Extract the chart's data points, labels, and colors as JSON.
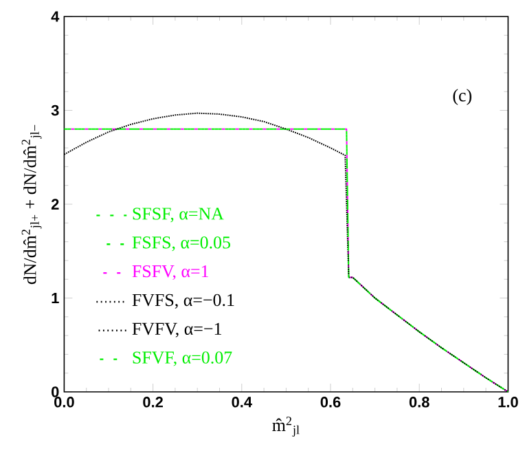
{
  "chart_data": {
    "type": "line",
    "xlabel": "m̂$^{2}$$_{jl}$",
    "ylabel": "dN/dm̂$^{2}$$_{jl+}$ + dN/dm̂$^{2}$$_{jl−}$",
    "annotations": [
      "(c)"
    ],
    "xlim": [
      0,
      1
    ],
    "ylim": [
      0,
      4
    ],
    "xticks": [
      {
        "value": 0,
        "label": "0.0"
      },
      0.2,
      0.4,
      0.6,
      0.8,
      {
        "value": 1,
        "label": "1.0"
      }
    ],
    "yticks": [
      0,
      1,
      2,
      3,
      4
    ],
    "grid": false,
    "legend": "bottom left",
    "marker": "none",
    "series": [
      {
        "name": "SFSF, α=NA",
        "color": "#00ee00",
        "line_style": "dashed",
        "x": [
          0,
          0.636,
          0.641,
          0.65,
          0.7,
          0.75,
          0.8,
          0.85,
          0.9,
          0.95,
          1.0
        ],
        "values": [
          2.8,
          2.8,
          1.22,
          1.22,
          1.0,
          0.82,
          0.64,
          0.47,
          0.31,
          0.15,
          0
        ]
      },
      {
        "name": "FSFS, α=0.05",
        "color": "#00ee00",
        "line_style": "dashed",
        "x": [
          0,
          0.636,
          0.641,
          0.65,
          0.7,
          0.75,
          0.8,
          0.85,
          0.9,
          0.95,
          1.0
        ],
        "values": [
          2.8,
          2.8,
          1.22,
          1.22,
          1.0,
          0.82,
          0.64,
          0.47,
          0.31,
          0.15,
          0
        ]
      },
      {
        "name": "FSFV, α=1",
        "color": "#ff00ff",
        "line_style": "dashed",
        "x": [
          0,
          0.636,
          0.641,
          0.65,
          0.7,
          0.75,
          0.8,
          0.85,
          0.9,
          0.95,
          1.0
        ],
        "values": [
          2.8,
          2.8,
          1.22,
          1.22,
          1.0,
          0.82,
          0.64,
          0.47,
          0.31,
          0.15,
          0
        ]
      },
      {
        "name": "FVFS, α=−0.1",
        "color": "#000000",
        "line_style": "dotted",
        "x": [
          0,
          0.05,
          0.1,
          0.15,
          0.2,
          0.25,
          0.3,
          0.35,
          0.4,
          0.45,
          0.5,
          0.55,
          0.6,
          0.633,
          0.641,
          0.65,
          0.7,
          0.75,
          0.8,
          0.85,
          0.9,
          0.95,
          1.0
        ],
        "values": [
          2.53,
          2.66,
          2.77,
          2.85,
          2.91,
          2.95,
          2.97,
          2.96,
          2.93,
          2.88,
          2.8,
          2.71,
          2.6,
          2.52,
          1.22,
          1.22,
          1.0,
          0.82,
          0.64,
          0.47,
          0.31,
          0.15,
          0
        ]
      },
      {
        "name": "FVFV, α=−1",
        "color": "#000000",
        "line_style": "dotted",
        "x": [
          0,
          0.05,
          0.1,
          0.15,
          0.2,
          0.25,
          0.3,
          0.35,
          0.4,
          0.45,
          0.5,
          0.55,
          0.6,
          0.633,
          0.641,
          0.65,
          0.7,
          0.75,
          0.8,
          0.85,
          0.9,
          0.95,
          1.0
        ],
        "values": [
          2.53,
          2.66,
          2.77,
          2.85,
          2.91,
          2.95,
          2.97,
          2.96,
          2.93,
          2.88,
          2.8,
          2.71,
          2.6,
          2.52,
          1.22,
          1.22,
          1.0,
          0.82,
          0.64,
          0.47,
          0.31,
          0.15,
          0
        ]
      },
      {
        "name": "SFVF, α=0.07",
        "color": "#00ee00",
        "line_style": "dashed",
        "x": [
          0,
          0.636,
          0.641,
          0.65,
          0.7,
          0.75,
          0.8,
          0.85,
          0.9,
          0.95,
          1.0
        ],
        "values": [
          2.8,
          2.8,
          1.22,
          1.22,
          1.0,
          0.82,
          0.64,
          0.47,
          0.31,
          0.15,
          0
        ]
      }
    ]
  }
}
